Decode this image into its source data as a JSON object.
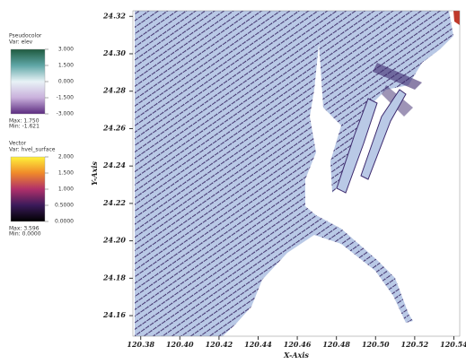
{
  "chart_data": {
    "type": "vector",
    "x_label": "X-Axis",
    "y_label": "Y-Axis",
    "xlim": [
      120.376,
      120.543
    ],
    "ylim": [
      24.149,
      24.323
    ],
    "xticks": [
      120.38,
      {
        "value": 120.4,
        "label": "120.40"
      },
      120.42,
      120.44,
      120.46,
      120.48,
      {
        "value": 120.5,
        "label": "120.50"
      },
      120.52,
      120.54
    ],
    "yticks": [
      24.16,
      24.18,
      {
        "value": 24.2,
        "label": "24.20"
      },
      24.22,
      24.24,
      24.26,
      24.28,
      {
        "value": 24.3,
        "label": "24.30"
      },
      24.32
    ],
    "legends": [
      {
        "title": "Pseudocolor",
        "var": "Var: elev",
        "ticks": [
          {
            "value": 3,
            "label": "3.000"
          },
          {
            "value": 1.5,
            "label": "1.500"
          },
          {
            "value": 0,
            "label": "0.000"
          },
          {
            "value": -1.5,
            "label": "-1.500"
          },
          {
            "value": -3,
            "label": "-3.000"
          }
        ],
        "max": "Max: 1.750",
        "min": "Min: -1.621",
        "colors": [
          "#1f5a3f",
          "#5fa6a6",
          "#e8f2f6",
          "#c9b0dc",
          "#5b2a7f"
        ]
      },
      {
        "title": "Vector",
        "var": "Var: hvel_surface",
        "ticks": [
          {
            "value": 2,
            "label": "2.000"
          },
          {
            "value": 1.5,
            "label": "1.500"
          },
          {
            "value": 1,
            "label": "1.000"
          },
          {
            "value": 0.5,
            "label": "0.5000"
          },
          {
            "value": 0,
            "label": "0.0000"
          }
        ],
        "max": "Max: 3.596",
        "min": "Min: 0.0000",
        "colors": [
          "#fff23a",
          "#f08a2a",
          "#b0306a",
          "#3a1a5a",
          "#000000"
        ]
      }
    ]
  }
}
